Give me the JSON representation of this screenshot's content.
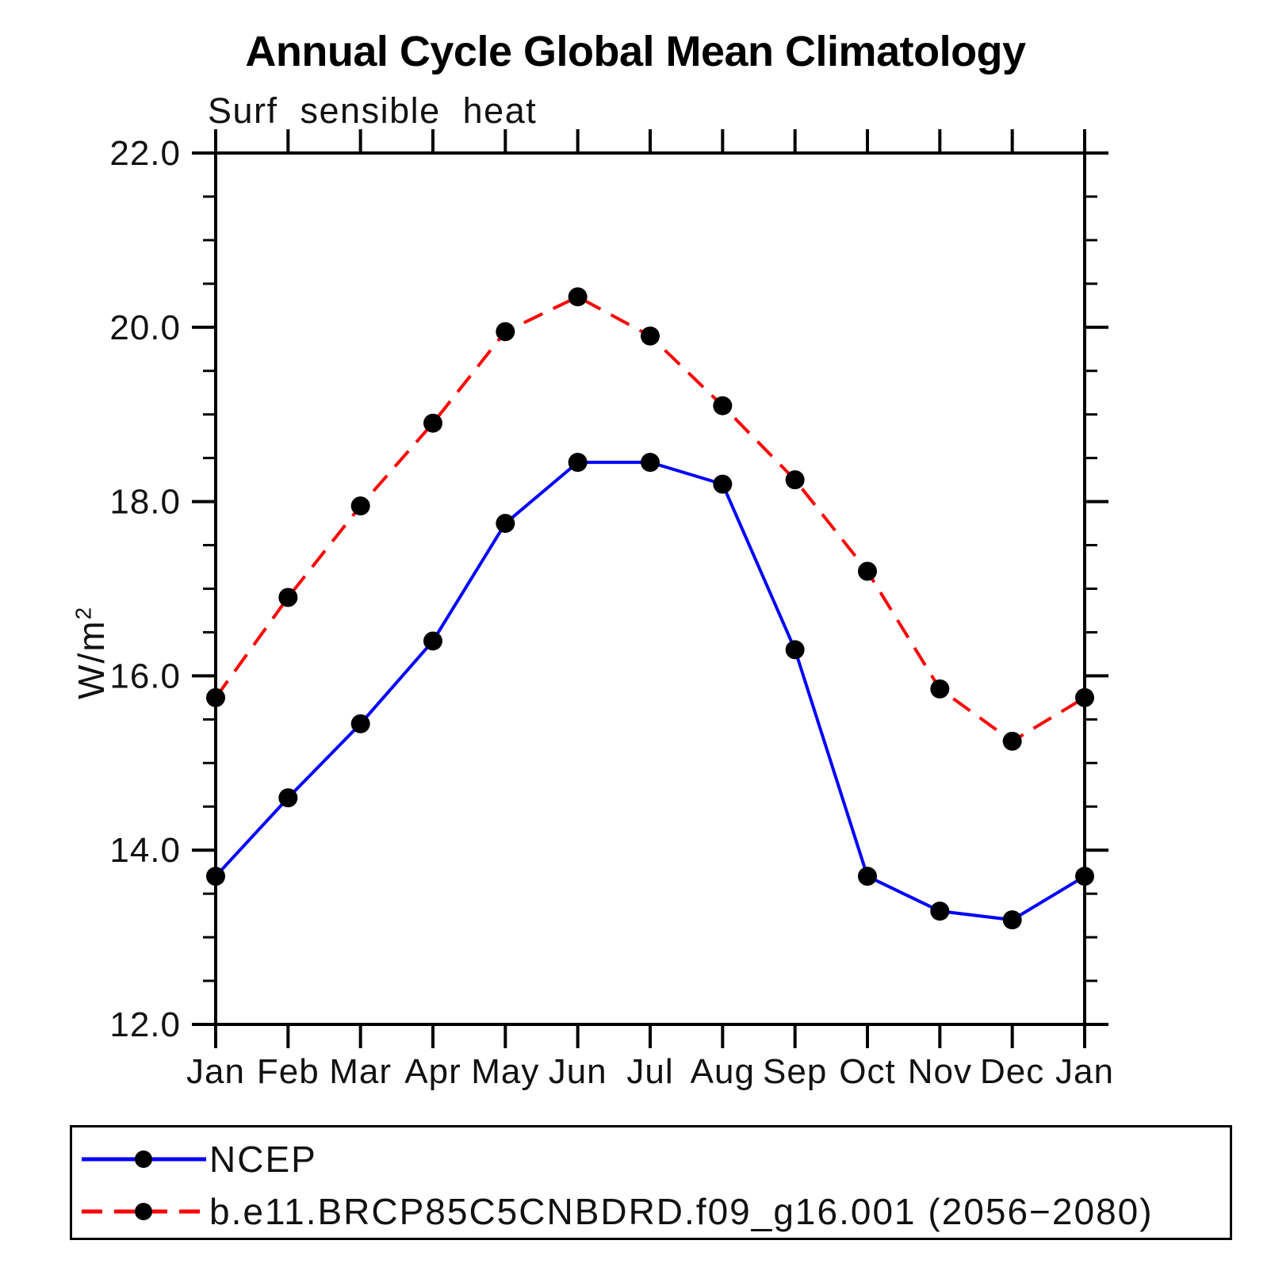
{
  "chart_data": {
    "type": "line",
    "title": "Annual Cycle Global Mean Climatology",
    "subtitle": "Surf sensible heat",
    "xlabel": "",
    "ylabel": "W/m²",
    "ylabel_parts": {
      "base": "W/m",
      "superscript": "2"
    },
    "categories": [
      "Jan",
      "Feb",
      "Mar",
      "Apr",
      "May",
      "Jun",
      "Jul",
      "Aug",
      "Sep",
      "Oct",
      "Nov",
      "Dec",
      "Jan"
    ],
    "ylim": [
      12.0,
      22.0
    ],
    "ytick_major": [
      {
        "value": 22.0,
        "label": "22.0"
      },
      {
        "value": 20.0,
        "label": "20.0"
      },
      {
        "value": 18.0,
        "label": "18.0"
      },
      {
        "value": 16.0,
        "label": "16.0"
      },
      {
        "value": 14.0,
        "label": "14.0"
      },
      {
        "value": 12.0,
        "label": "12.0"
      }
    ],
    "ytick_minor_step": 0.5,
    "grid": false,
    "legend_position": "bottom-left",
    "axis_color": "#000000",
    "series": [
      {
        "name": "NCEP",
        "line_color": "#0000ff",
        "line_style": "solid",
        "marker": "circle",
        "marker_color": "#000000",
        "values": [
          13.7,
          14.6,
          15.45,
          16.4,
          17.75,
          18.45,
          18.45,
          18.2,
          16.3,
          13.7,
          13.3,
          13.2,
          13.7
        ]
      },
      {
        "name": "b.e11.BRCP85C5CNBDRD.f09_g16.001 (2056−2080)",
        "line_color": "#ff0000",
        "line_style": "dashed",
        "marker": "circle",
        "marker_color": "#000000",
        "values": [
          15.75,
          16.9,
          17.95,
          18.9,
          19.95,
          20.35,
          19.9,
          19.1,
          18.25,
          17.2,
          15.85,
          15.25,
          15.75
        ]
      }
    ]
  }
}
